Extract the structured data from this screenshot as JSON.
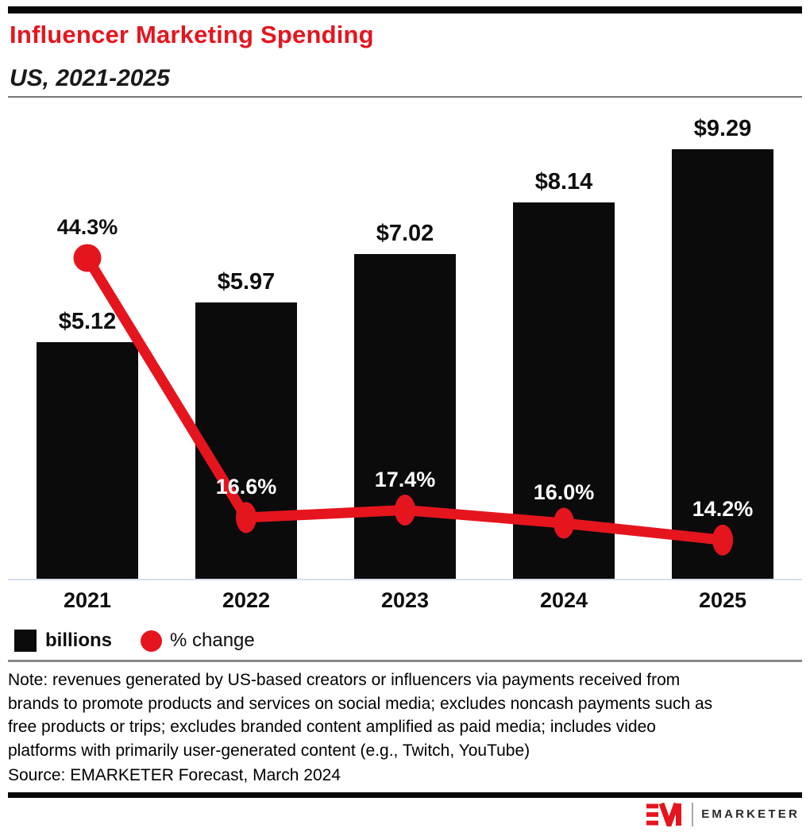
{
  "header": {
    "title": "Influencer Marketing Spending",
    "subtitle": "US, 2021-2025"
  },
  "chart_data": {
    "type": "combo-bar-line",
    "title": "Influencer Marketing Spending",
    "subtitle": "US, 2021-2025",
    "categories": [
      "2021",
      "2022",
      "2023",
      "2024",
      "2025"
    ],
    "series": [
      {
        "name": "billions",
        "type": "bar",
        "values": [
          5.12,
          5.97,
          7.02,
          8.14,
          9.29
        ],
        "data_labels": [
          "$5.12",
          "$5.97",
          "$7.02",
          "$8.14",
          "$9.29"
        ],
        "color": "#0b0b0c"
      },
      {
        "name": "% change",
        "type": "line",
        "values": [
          44.3,
          16.6,
          17.4,
          16.0,
          14.2
        ],
        "data_labels": [
          "44.3%",
          "16.6%",
          "17.4%",
          "16.0%",
          "14.2%"
        ],
        "color": "#e5151e",
        "label_colors": [
          "#0e0e10",
          "#ffffff",
          "#ffffff",
          "#ffffff",
          "#ffffff"
        ]
      }
    ],
    "legend_position": "bottom-left",
    "grid": false,
    "y_axis_visible": false
  },
  "legend": {
    "bar_label": "billions",
    "line_label": "% change"
  },
  "footer": {
    "note_lines": [
      "Note: revenues generated by US-based creators or influencers via payments received from",
      "brands to promote products and services on social media; excludes noncash payments such as",
      "free products or trips; excludes branded content amplified as paid media; includes video",
      "platforms with primarily user-generated content (e.g., Twitch, YouTube)"
    ],
    "source": "Source: EMARKETER Forecast, March 2024"
  },
  "logo": {
    "monogram": "EM",
    "wordmark": "EMARKETER"
  },
  "colors": {
    "accent_red": "#e5151e",
    "bar_black": "#0b0b0c",
    "baseline": "#d8ddef",
    "divider_gray": "#85878a"
  }
}
